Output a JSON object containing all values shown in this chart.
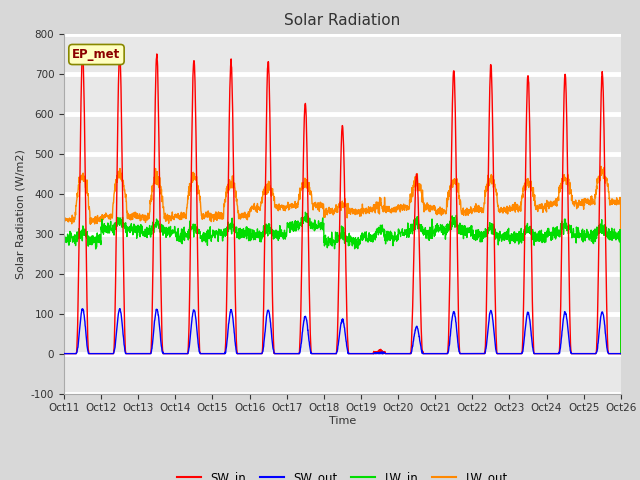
{
  "title": "Solar Radiation",
  "ylabel": "Solar Radiation (W/m2)",
  "xlabel": "Time",
  "ylim": [
    -100,
    800
  ],
  "fig_bg_color": "#d8d8d8",
  "plot_bg_color": "#e8e8e8",
  "grid_color": "white",
  "label_box_text": "EP_met",
  "label_box_bg": "#ffffc0",
  "label_box_border": "#888800",
  "series": {
    "SW_in": {
      "color": "#ff0000",
      "lw": 1.0
    },
    "SW_out": {
      "color": "#0000ff",
      "lw": 1.0
    },
    "LW_in": {
      "color": "#00dd00",
      "lw": 1.0
    },
    "LW_out": {
      "color": "#ff8800",
      "lw": 1.0
    }
  },
  "xtick_labels": [
    "Oct 11",
    "Oct 12",
    "Oct 13",
    "Oct 14",
    "Oct 15",
    "Oct 16",
    "Oct 17",
    "Oct 18",
    "Oct 19",
    "Oct 20",
    "Oct 21",
    "Oct 22",
    "Oct 23",
    "Oct 24",
    "Oct 25",
    "Oct 26"
  ],
  "n_days": 15,
  "pts_per_day": 144,
  "sw_in_peaks": [
    750,
    750,
    745,
    735,
    730,
    730,
    625,
    570,
    5,
    450,
    710,
    720,
    695,
    700,
    700
  ],
  "lw_in_base": [
    285,
    310,
    305,
    295,
    300,
    295,
    320,
    280,
    290,
    305,
    310,
    295,
    290,
    300,
    295
  ],
  "lw_out_base": [
    335,
    345,
    340,
    345,
    345,
    365,
    370,
    355,
    360,
    365,
    355,
    360,
    365,
    375,
    380
  ],
  "lw_out_peak": [
    440,
    450,
    440,
    440,
    430,
    420,
    425,
    370,
    370,
    425,
    430,
    435,
    430,
    440,
    455
  ]
}
